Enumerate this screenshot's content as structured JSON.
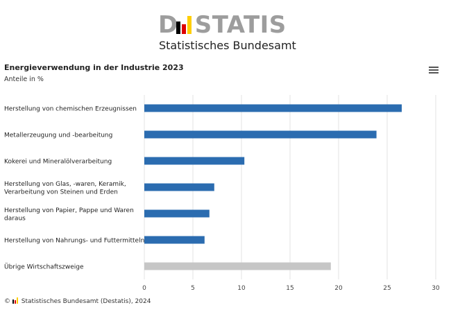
{
  "logo": {
    "wordmark_prefix": "D",
    "wordmark_suffix": "STATIS",
    "subtitle": "Statistisches Bundesamt"
  },
  "menu": {
    "icon": "hamburger-menu-icon"
  },
  "footer": {
    "text": "Statistisches Bundesamt (Destatis), 2024",
    "symbol": "©"
  },
  "colors": {
    "bar": "#2b6cb0",
    "bar_other": "#c6c6c6",
    "grid": "#e3e3e3",
    "flag_black": "#000000",
    "flag_red": "#dd0000",
    "flag_gold": "#ffce00"
  },
  "chart_data": {
    "type": "bar",
    "orientation": "horizontal",
    "title": "Energieverwendung in der Industrie 2023",
    "subtitle": "Anteile in %",
    "categories": [
      [
        "Herstellung von chemischen Erzeugnissen"
      ],
      [
        "Metallerzeugung und -bearbeitung"
      ],
      [
        "Kokerei und Mineralölverarbeitung"
      ],
      [
        "Herstellung von Glas, -waren, Keramik,",
        "Verarbeitung von Steinen und Erden"
      ],
      [
        "Herstellung von Papier, Pappe und Waren",
        "daraus"
      ],
      [
        "Herstellung von Nahrungs- und Futtermitteln"
      ],
      [
        "Übrige Wirtschaftszweige"
      ]
    ],
    "values": [
      26.5,
      23.9,
      10.3,
      7.2,
      6.7,
      6.2,
      19.2
    ],
    "highlight_last_as_other": true,
    "xlim": [
      0,
      30
    ],
    "xticks": [
      0,
      5,
      10,
      15,
      20,
      25,
      30
    ],
    "grid": true,
    "legend": "none"
  }
}
